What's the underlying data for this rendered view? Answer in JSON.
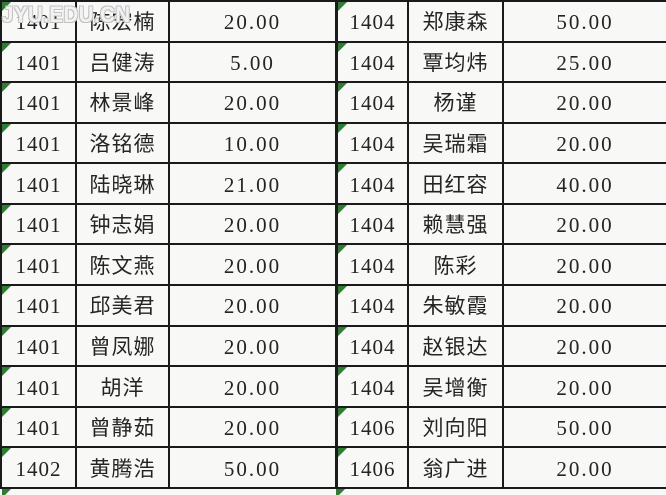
{
  "watermark": {
    "text": "JYU.EDU.CN"
  },
  "colors": {
    "comment_triangle_green": "#2e7d32",
    "grid_border": "#1a1a1a",
    "cell_background": "#f8f8f6",
    "cell_text": "#242424",
    "watermark_outline": "#c2c2c2"
  },
  "tables": [
    {
      "name": "left-table",
      "columns": [
        "class_id",
        "student",
        "amount"
      ],
      "rows": [
        {
          "class_id": "1401",
          "student": "陈宏楠",
          "amount": "20.00"
        },
        {
          "class_id": "1401",
          "student": "吕健涛",
          "amount": "5.00"
        },
        {
          "class_id": "1401",
          "student": "林景峰",
          "amount": "20.00"
        },
        {
          "class_id": "1401",
          "student": "洛铭德",
          "amount": "10.00"
        },
        {
          "class_id": "1401",
          "student": "陆晓琳",
          "amount": "21.00"
        },
        {
          "class_id": "1401",
          "student": "钟志娟",
          "amount": "20.00"
        },
        {
          "class_id": "1401",
          "student": "陈文燕",
          "amount": "20.00"
        },
        {
          "class_id": "1401",
          "student": "邱美君",
          "amount": "20.00"
        },
        {
          "class_id": "1401",
          "student": "曾凤娜",
          "amount": "20.00"
        },
        {
          "class_id": "1401",
          "student": "胡洋",
          "amount": "20.00"
        },
        {
          "class_id": "1401",
          "student": "曾静茹",
          "amount": "20.00"
        },
        {
          "class_id": "1402",
          "student": "黄腾浩",
          "amount": "50.00"
        }
      ]
    },
    {
      "name": "right-table",
      "columns": [
        "class_id",
        "student",
        "amount"
      ],
      "rows": [
        {
          "class_id": "1404",
          "student": "郑康森",
          "amount": "50.00"
        },
        {
          "class_id": "1404",
          "student": "覃均炜",
          "amount": "25.00"
        },
        {
          "class_id": "1404",
          "student": "杨谨",
          "amount": "20.00"
        },
        {
          "class_id": "1404",
          "student": "吴瑞霜",
          "amount": "20.00"
        },
        {
          "class_id": "1404",
          "student": "田红容",
          "amount": "40.00"
        },
        {
          "class_id": "1404",
          "student": "赖慧强",
          "amount": "20.00"
        },
        {
          "class_id": "1404",
          "student": "陈彩",
          "amount": "20.00"
        },
        {
          "class_id": "1404",
          "student": "朱敏霞",
          "amount": "20.00"
        },
        {
          "class_id": "1404",
          "student": "赵银达",
          "amount": "20.00"
        },
        {
          "class_id": "1404",
          "student": "吴增衡",
          "amount": "20.00"
        },
        {
          "class_id": "1406",
          "student": "刘向阳",
          "amount": "50.00"
        },
        {
          "class_id": "1406",
          "student": "翁广进",
          "amount": "20.00"
        }
      ]
    }
  ]
}
